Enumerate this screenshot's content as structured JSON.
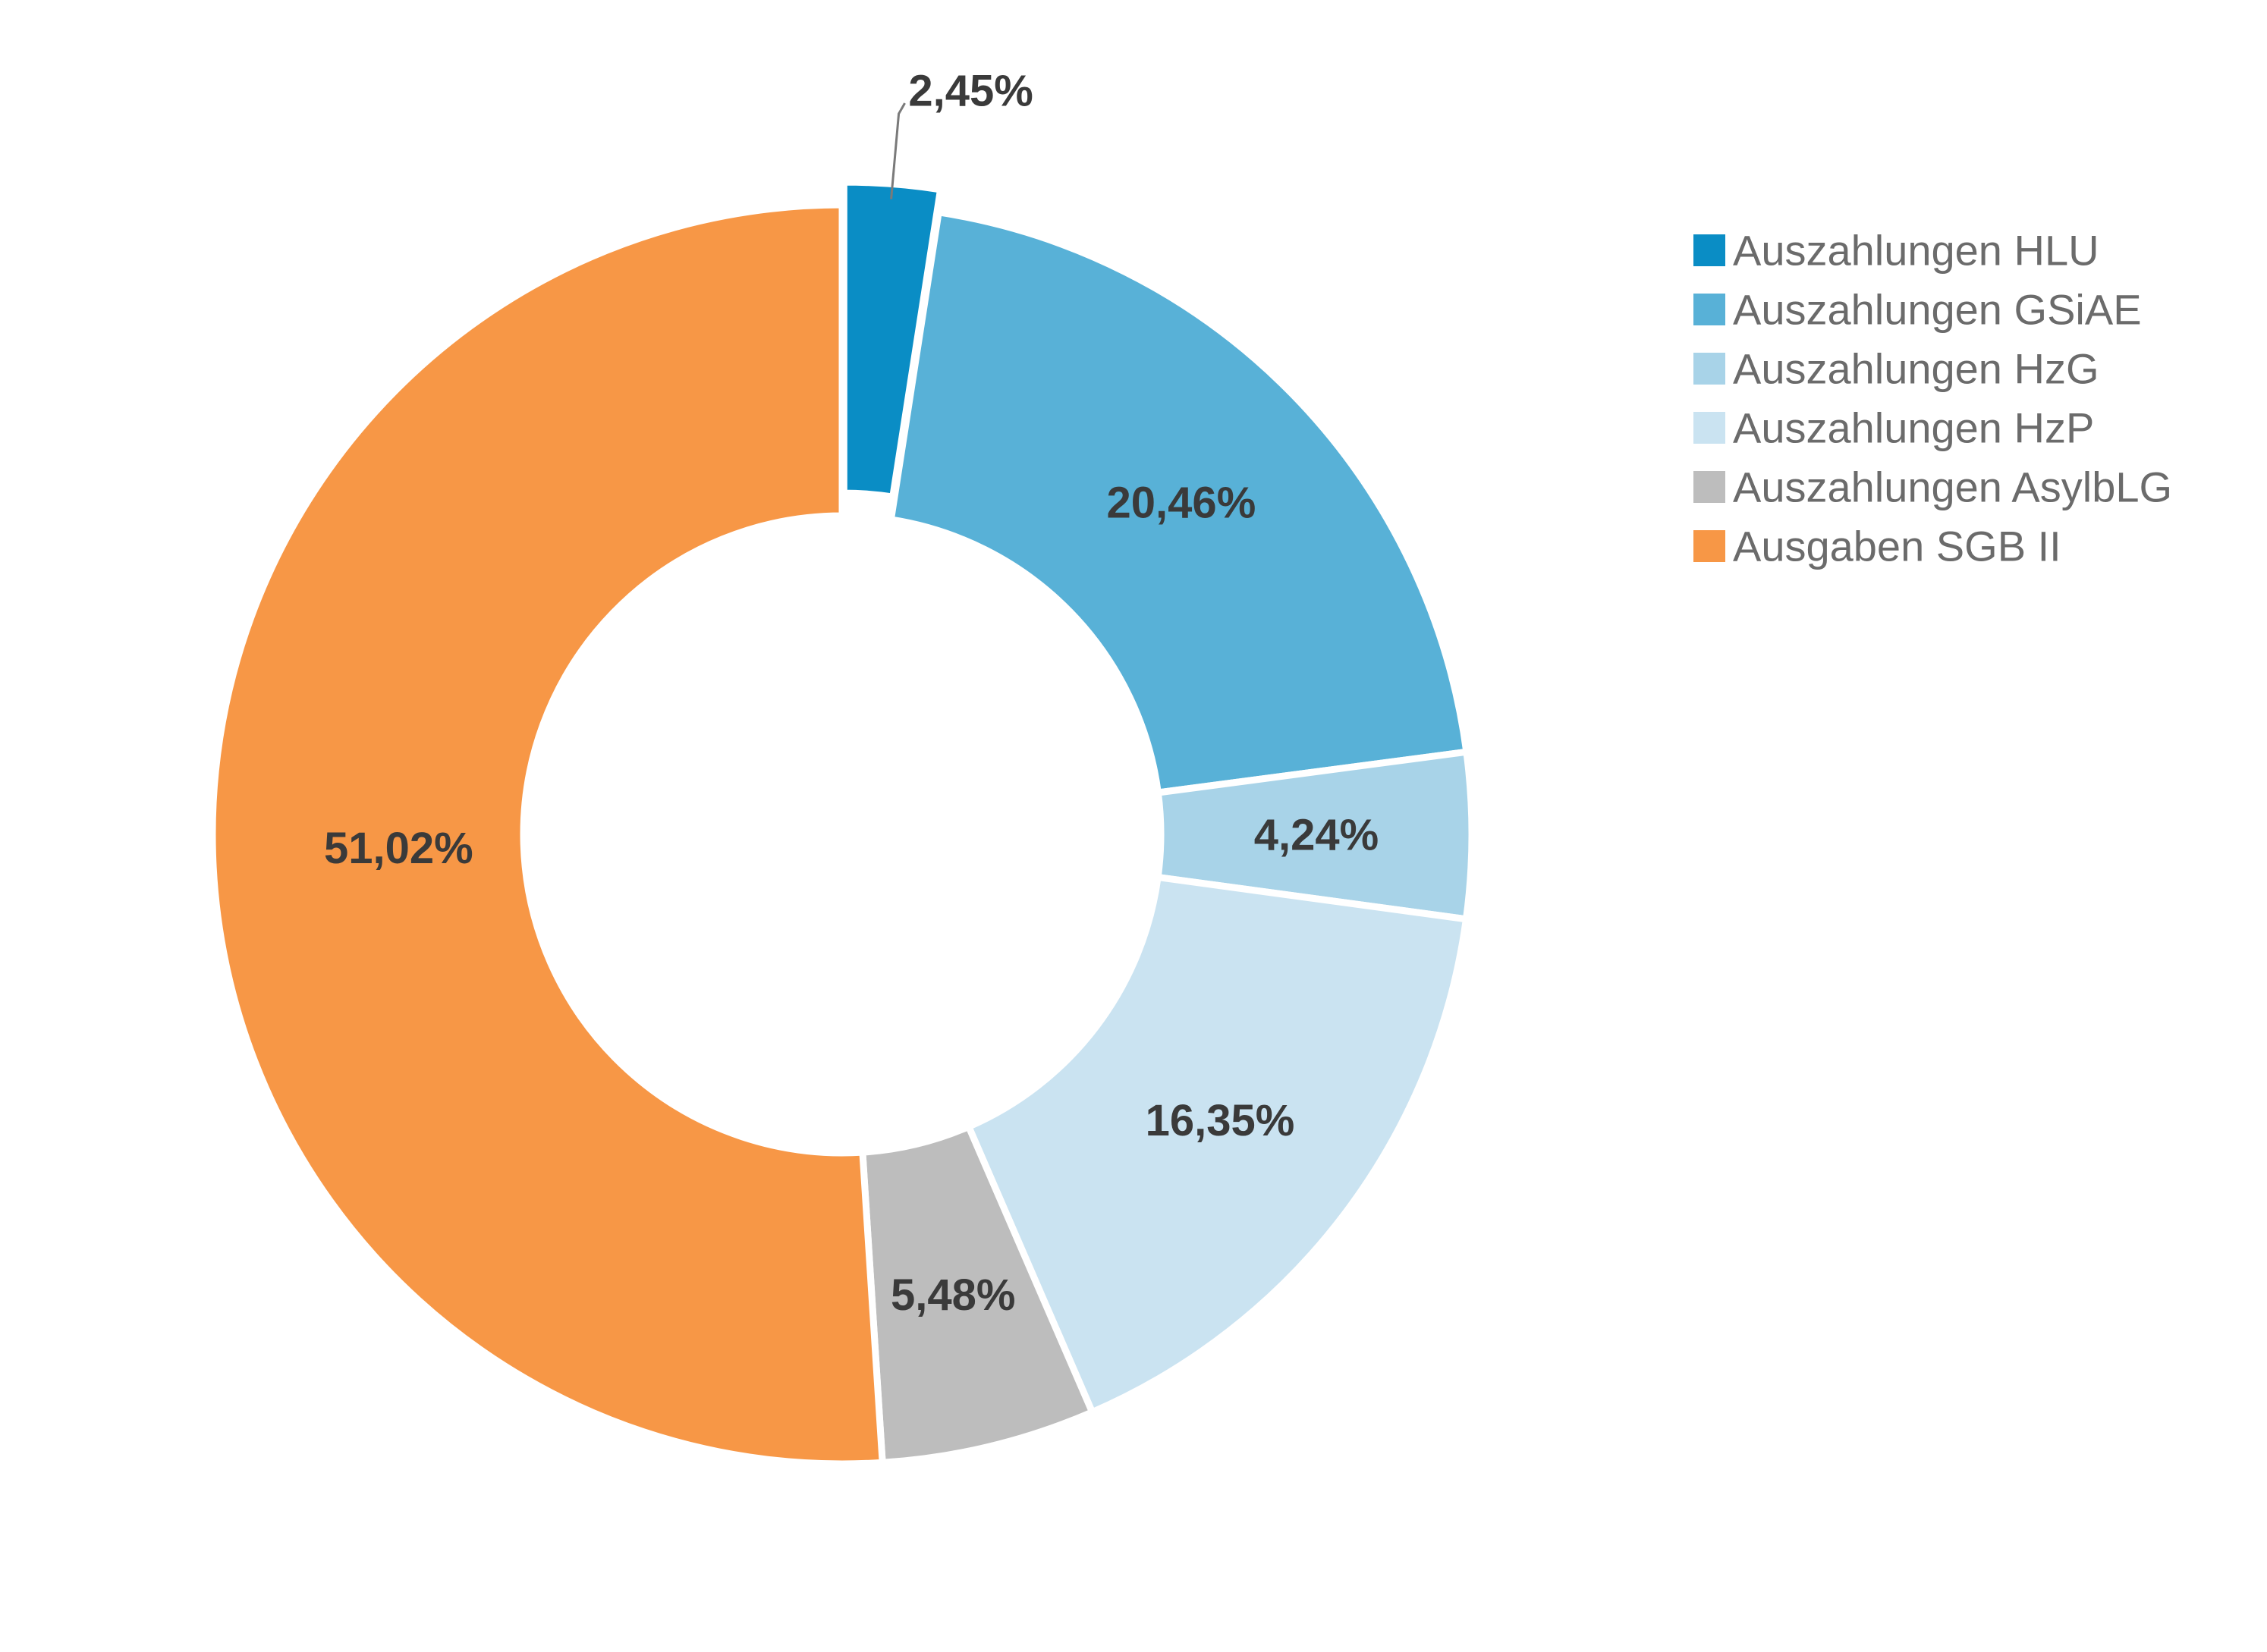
{
  "chart_data": {
    "type": "pie",
    "variant": "donut",
    "title": "",
    "legend_position": "right",
    "slices": [
      {
        "name": "Auszahlungen HLU",
        "value": 2.45,
        "label": "2,45%",
        "color": "#0a8dc5"
      },
      {
        "name": "Auszahlungen GSiAE",
        "value": 20.46,
        "label": "20,46%",
        "color": "#58b1d7"
      },
      {
        "name": "Auszahlungen HzG",
        "value": 4.24,
        "label": "4,24%",
        "color": "#a8d3e8"
      },
      {
        "name": "Auszahlungen HzP",
        "value": 16.35,
        "label": "16,35%",
        "color": "#cae3f1"
      },
      {
        "name": "Auszahlungen AsylbLG",
        "value": 5.48,
        "label": "5,48%",
        "color": "#bdbdbd"
      },
      {
        "name": "Ausgaben SGB II",
        "value": 51.02,
        "label": "51,02%",
        "color": "#f79746"
      }
    ]
  }
}
